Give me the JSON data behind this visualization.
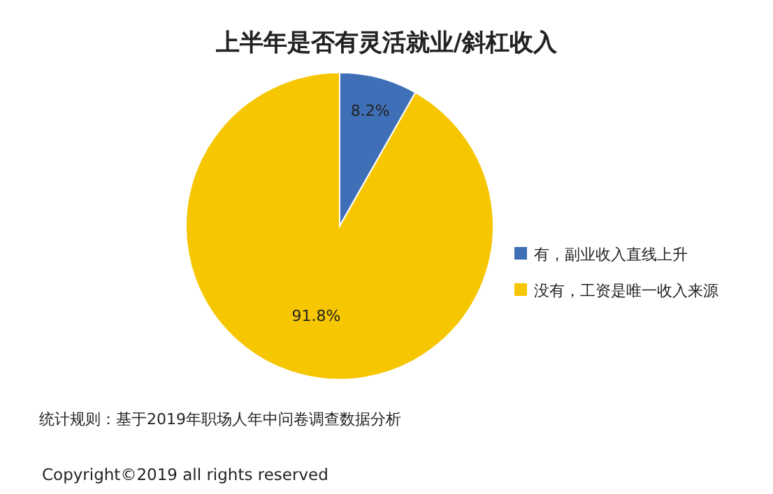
{
  "chart_data": {
    "type": "pie",
    "title": "上半年是否有灵活就业/斜杠收入",
    "categories": [
      "有，副业收入直线上升",
      "没有，工资是唯一收入来源"
    ],
    "values": [
      8.2,
      91.8
    ],
    "colors": [
      "#3f6fb6",
      "#f6c600"
    ],
    "value_labels": [
      "8.2%",
      "91.8%"
    ],
    "legend": "right",
    "annotations": [
      "统计规则：基于2019年职场人年中问卷调查数据分析",
      "Copyright©2019 all rights reserved"
    ]
  }
}
